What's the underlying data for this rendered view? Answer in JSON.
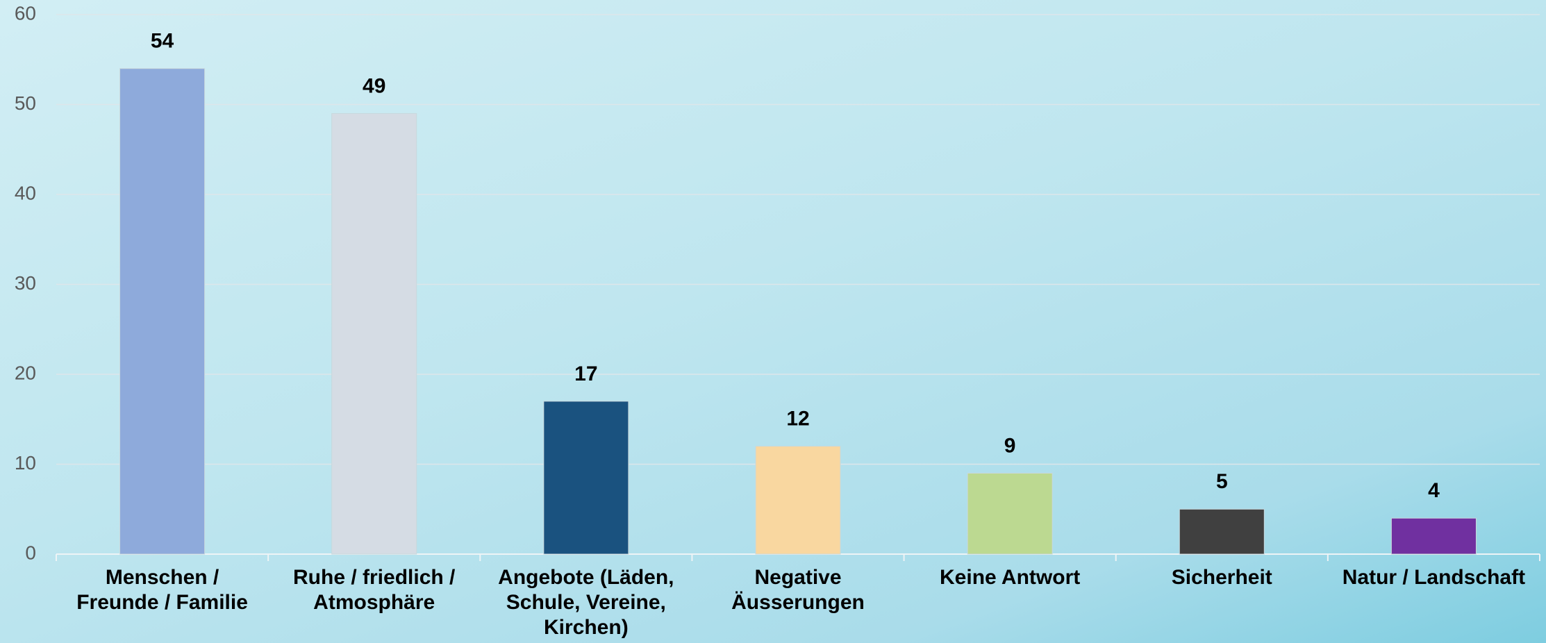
{
  "chart_data": {
    "type": "bar",
    "categories": [
      "Menschen / Freunde / Familie",
      "Ruhe / friedlich / Atmosphäre",
      "Angebote (Läden, Schule, Vereine, Kirchen)",
      "Negative Äusserungen",
      "Keine Antwort",
      "Sicherheit",
      "Natur / Landschaft"
    ],
    "values": [
      54,
      49,
      17,
      12,
      9,
      5,
      4
    ],
    "colors": [
      "#8eaadb",
      "#d5dce4",
      "#1a527f",
      "#f9d7a0",
      "#bcd991",
      "#404040",
      "#7030a0"
    ],
    "ylim": [
      0,
      60
    ],
    "yticks": [
      0,
      10,
      20,
      30,
      40,
      50,
      60
    ],
    "grid": true
  }
}
